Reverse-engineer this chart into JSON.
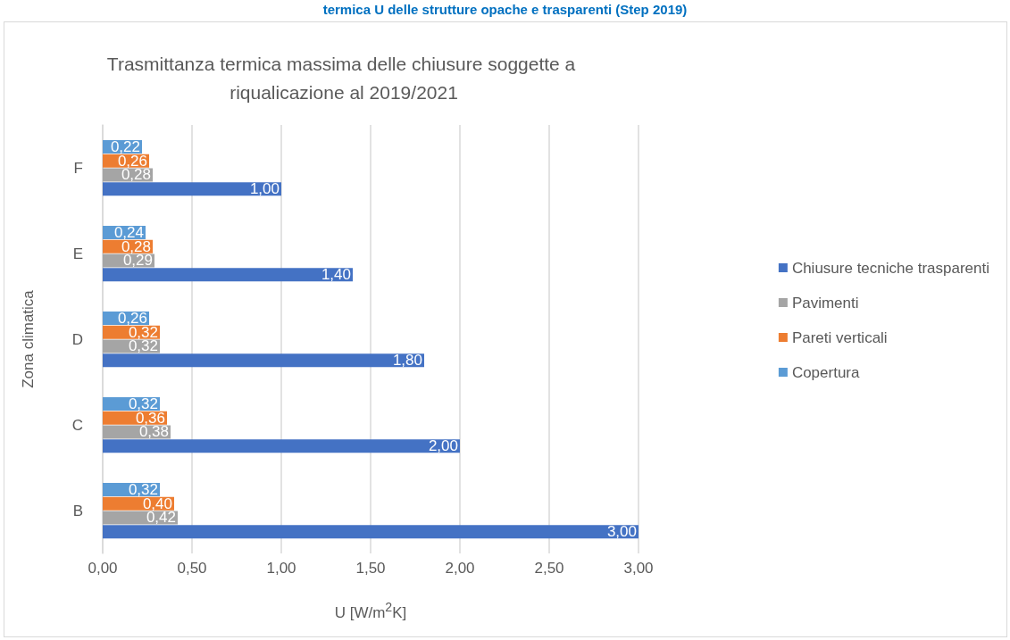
{
  "chart_data": {
    "type": "bar",
    "orientation": "horizontal",
    "title": "Trasmittanza termica massima delle chiusure soggette a riqualicazione al 2019/2021",
    "xlabel": "U [W/m$^{2}$K]",
    "ylabel": "Zona climatica",
    "annotations": [
      "termica U delle strutture opache e trasparenti (Step 2019)"
    ],
    "categories": [
      "F",
      "E",
      "D",
      "C",
      "B"
    ],
    "series": [
      {
        "name": "Copertura",
        "color": "#5b9bd5",
        "values": [
          0.22,
          0.24,
          0.26,
          0.32,
          0.32
        ],
        "value_labels": [
          "0,22",
          "0,24",
          "0,26",
          "0,32",
          "0,32"
        ]
      },
      {
        "name": "Pareti verticali",
        "color": "#ed7d31",
        "values": [
          0.26,
          0.28,
          0.32,
          0.36,
          0.4
        ],
        "value_labels": [
          "0,26",
          "0,28",
          "0,32",
          "0,36",
          "0,40"
        ]
      },
      {
        "name": "Pavimenti",
        "color": "#a5a5a5",
        "values": [
          0.28,
          0.29,
          0.32,
          0.38,
          0.42
        ],
        "value_labels": [
          "0,28",
          "0,29",
          "0,32",
          "0,38",
          "0,42"
        ]
      },
      {
        "name": "Chiusure tecniche trasparenti",
        "color": "#4472c4",
        "values": [
          1.0,
          1.4,
          1.8,
          2.0,
          3.0
        ],
        "value_labels": [
          "1,00",
          "1,40",
          "1,80",
          "2,00",
          "3,00"
        ]
      }
    ],
    "xlim": [
      0,
      3
    ],
    "xticks": [
      {
        "value": 0,
        "label": "0,00"
      },
      {
        "value": 0.5,
        "label": "0,50"
      },
      {
        "value": 1,
        "label": "1,00"
      },
      {
        "value": 1.5,
        "label": "1,50"
      },
      {
        "value": 2,
        "label": "2,00"
      },
      {
        "value": 2.5,
        "label": "2,50"
      },
      {
        "value": 3,
        "label": "3,00"
      }
    ],
    "grid": "x",
    "legend": "right"
  }
}
